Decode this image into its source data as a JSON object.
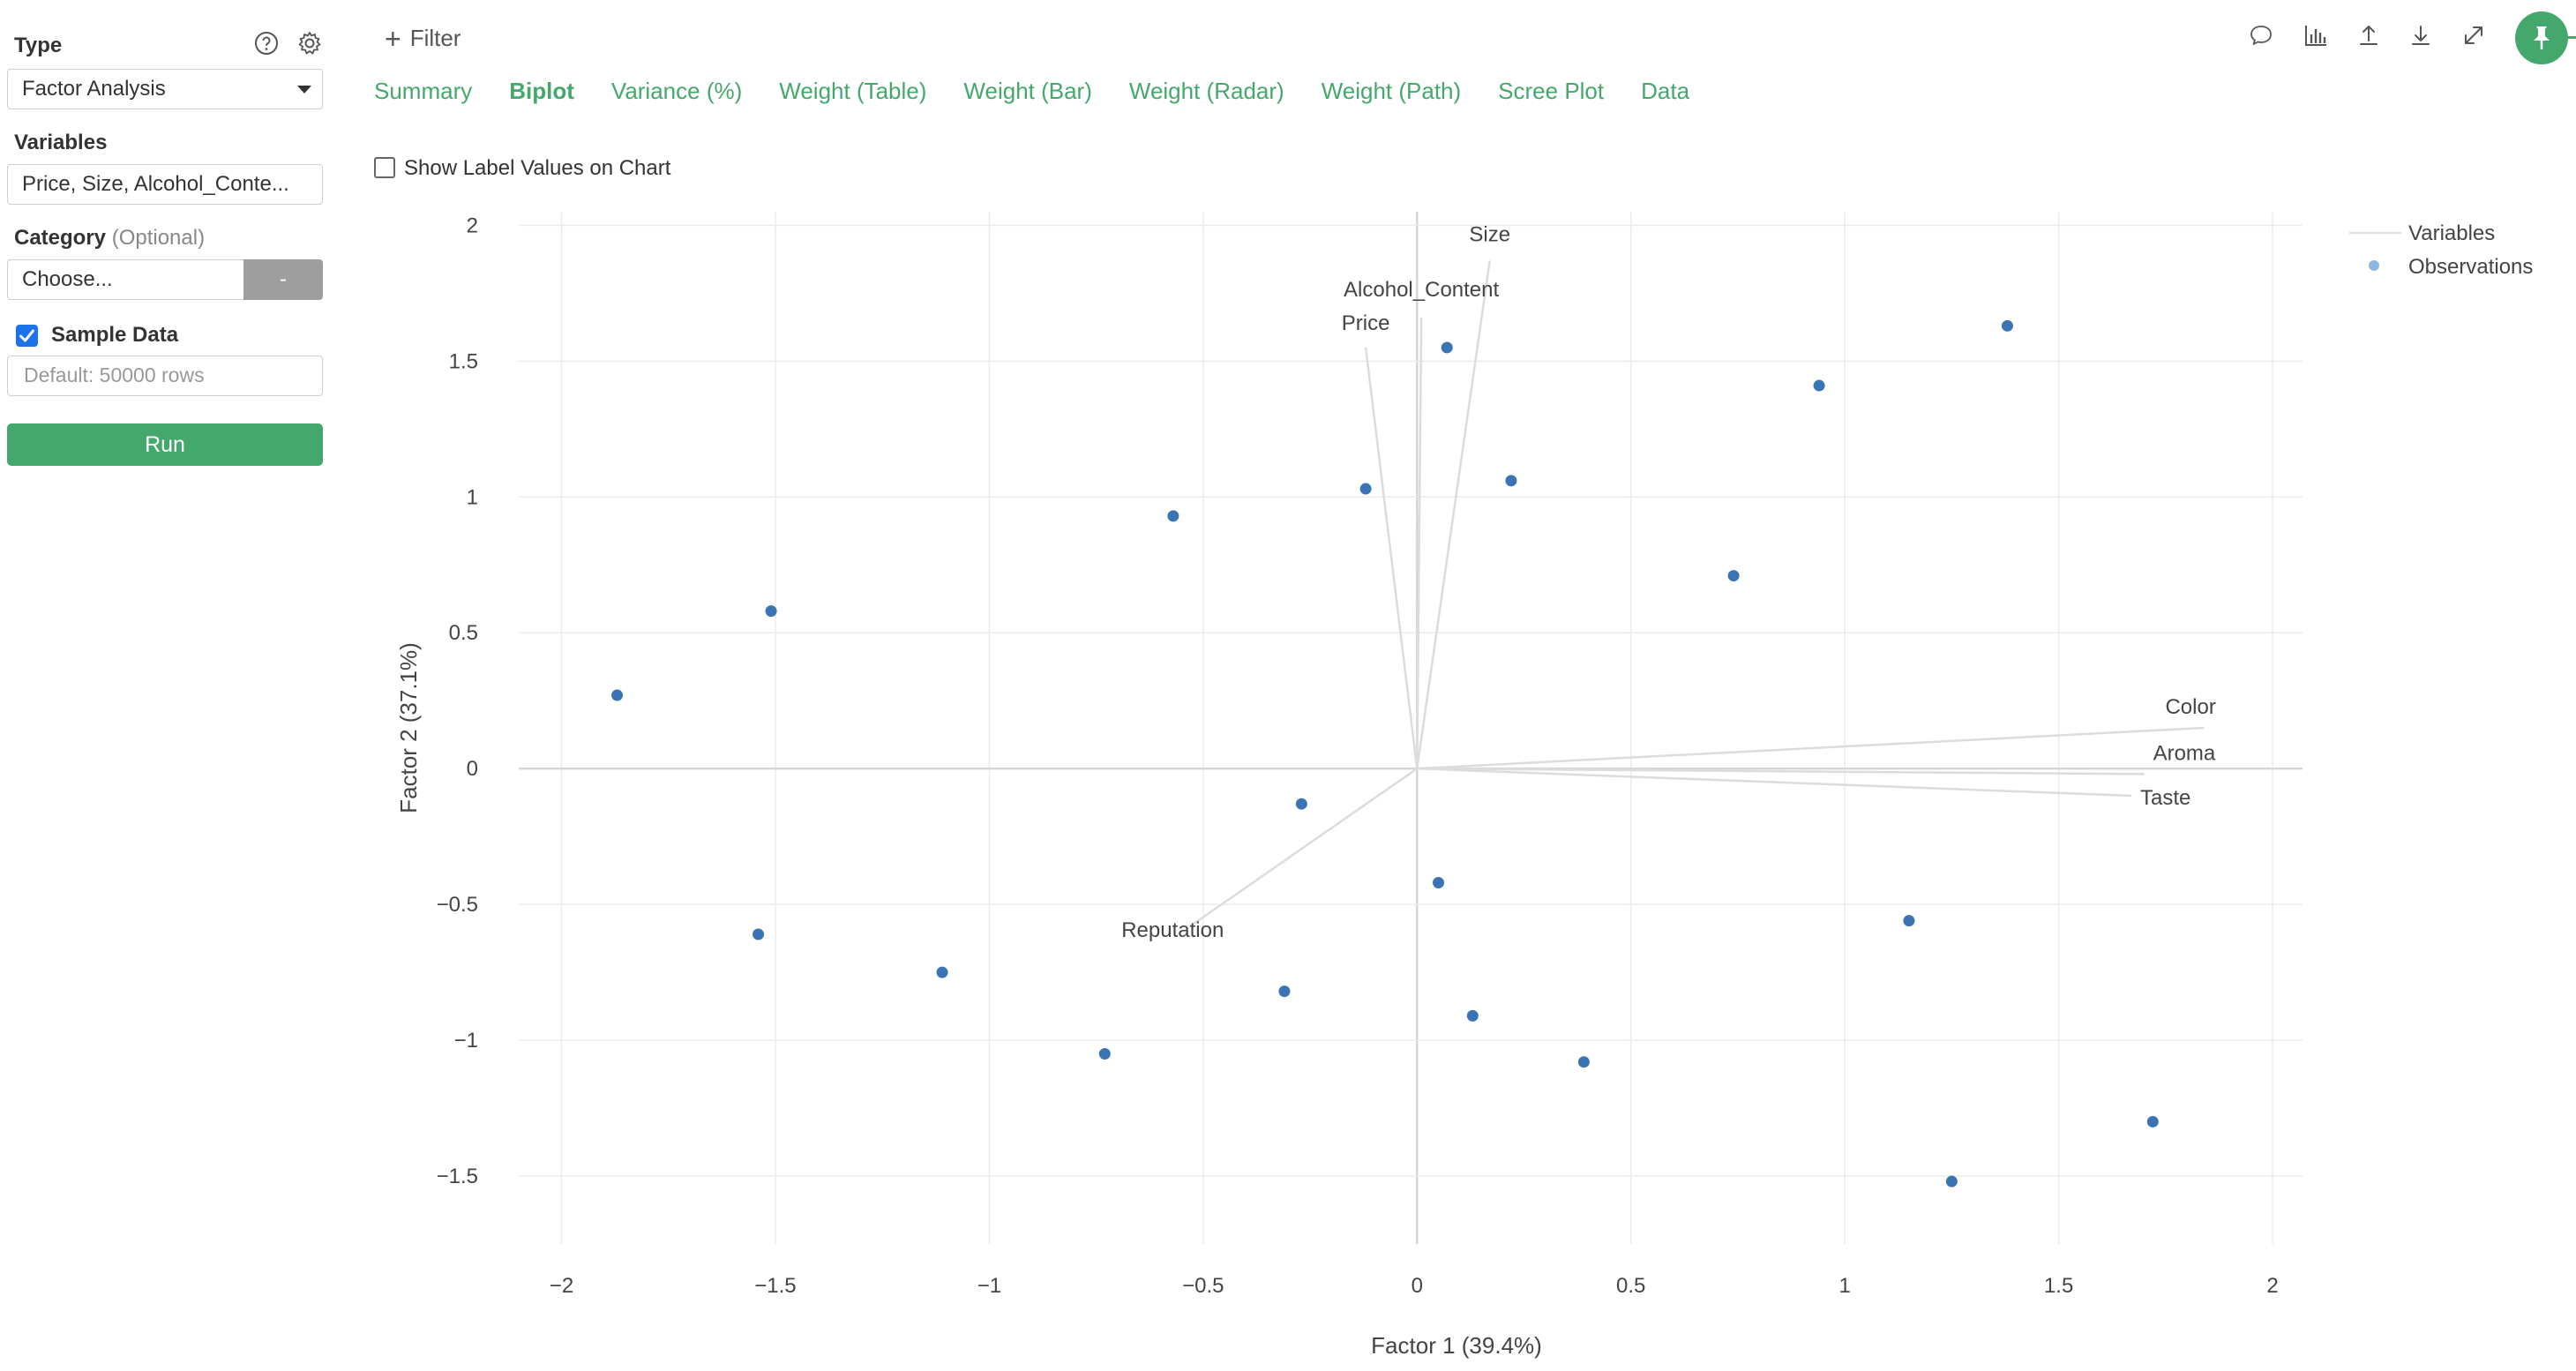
{
  "sidebar": {
    "type_label": "Type",
    "type_value": "Factor Analysis",
    "variables_label": "Variables",
    "variables_value": "Price, Size, Alcohol_Conte...",
    "category_label": "Category",
    "category_optional": "(Optional)",
    "category_value": "Choose...",
    "category_clear": "-",
    "sample_data_label": "Sample Data",
    "sample_data_checked": true,
    "sample_placeholder": "Default: 50000 rows",
    "run_label": "Run"
  },
  "header": {
    "filter_label": "Filter",
    "tabs": [
      {
        "label": "Summary",
        "active": false
      },
      {
        "label": "Biplot",
        "active": true
      },
      {
        "label": "Variance (%)",
        "active": false
      },
      {
        "label": "Weight (Table)",
        "active": false
      },
      {
        "label": "Weight (Bar)",
        "active": false
      },
      {
        "label": "Weight (Radar)",
        "active": false
      },
      {
        "label": "Weight (Path)",
        "active": false
      },
      {
        "label": "Scree Plot",
        "active": false
      },
      {
        "label": "Data",
        "active": false
      }
    ],
    "toolbar_icons": [
      "comment-icon",
      "chart-icon",
      "upload-icon",
      "download-icon",
      "expand-icon",
      "pin-icon"
    ],
    "show_label_values": "Show Label Values on Chart"
  },
  "colors": {
    "accent": "#44a86c",
    "point": "#3b74b4",
    "legend_point": "#8fb8df",
    "vector": "#dcdcdc",
    "grid": "#ebebeb"
  },
  "chart_data": {
    "type": "scatter",
    "xlabel": "Factor 1 (39.4%)",
    "ylabel": "Factor 2 (37.1%)",
    "xlim": [
      -2.1,
      2.07
    ],
    "ylim": [
      -1.75,
      2.05
    ],
    "xticks": [
      -2,
      -1.5,
      -1,
      -0.5,
      0,
      0.5,
      1,
      1.5,
      2
    ],
    "xtick_labels": [
      "−2",
      "−1.5",
      "−1",
      "−0.5",
      "0",
      "0.5",
      "1",
      "1.5",
      "2"
    ],
    "yticks": [
      -1.5,
      -1,
      -0.5,
      0,
      0.5,
      1,
      1.5,
      2
    ],
    "ytick_labels": [
      "−1.5",
      "−1",
      "−0.5",
      "0",
      "0.5",
      "1",
      "1.5",
      "2"
    ],
    "grid": true,
    "legend": {
      "placement": "top-right",
      "entries": [
        "Variables",
        "Observations"
      ]
    },
    "vectors": [
      {
        "label": "Size",
        "x": 0.17,
        "y": 1.87
      },
      {
        "label": "Alcohol_Content",
        "x": 0.01,
        "y": 1.66
      },
      {
        "label": "Price",
        "x": -0.12,
        "y": 1.55
      },
      {
        "label": "Color",
        "x": 1.84,
        "y": 0.15
      },
      {
        "label": "Aroma",
        "x": 1.7,
        "y": -0.02
      },
      {
        "label": "Taste",
        "x": 1.67,
        "y": -0.1
      },
      {
        "label": "Reputation",
        "x": -0.53,
        "y": -0.58
      }
    ],
    "points": [
      {
        "x": -1.87,
        "y": 0.27
      },
      {
        "x": -1.51,
        "y": 0.58
      },
      {
        "x": -1.54,
        "y": -0.61
      },
      {
        "x": -1.11,
        "y": -0.75
      },
      {
        "x": -0.73,
        "y": -1.05
      },
      {
        "x": -0.57,
        "y": 0.93
      },
      {
        "x": -0.31,
        "y": -0.82
      },
      {
        "x": -0.27,
        "y": -0.13
      },
      {
        "x": -0.12,
        "y": 1.03
      },
      {
        "x": 0.05,
        "y": -0.42
      },
      {
        "x": 0.07,
        "y": 1.55
      },
      {
        "x": 0.13,
        "y": -0.91
      },
      {
        "x": 0.22,
        "y": 1.06
      },
      {
        "x": 0.39,
        "y": -1.08
      },
      {
        "x": 0.74,
        "y": 0.71
      },
      {
        "x": 0.94,
        "y": 1.41
      },
      {
        "x": 1.15,
        "y": -0.56
      },
      {
        "x": 1.25,
        "y": -1.52
      },
      {
        "x": 1.38,
        "y": 1.63
      },
      {
        "x": 1.72,
        "y": -1.3
      }
    ]
  }
}
